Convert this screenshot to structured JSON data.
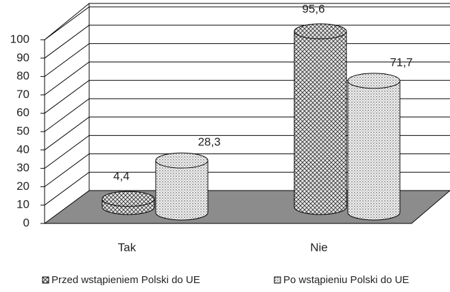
{
  "chart_data": {
    "type": "bar3d",
    "categories": [
      "Tak",
      "Nie"
    ],
    "series": [
      {
        "name": "Przed wstąpieniem Polski do UE",
        "color": "#9a9a9a",
        "values": [
          4.4,
          95.6
        ],
        "value_labels": [
          "4,4",
          "95,6"
        ]
      },
      {
        "name": "Po wstąpieniu Polski do UE",
        "color": "#d8d8d8",
        "values": [
          28.3,
          71.7
        ],
        "value_labels": [
          "28,3",
          "71,7"
        ]
      }
    ],
    "ylim": [
      0,
      100
    ],
    "yticks": [
      0,
      10,
      20,
      30,
      40,
      50,
      60,
      70,
      80,
      90,
      100
    ],
    "grid": true
  }
}
